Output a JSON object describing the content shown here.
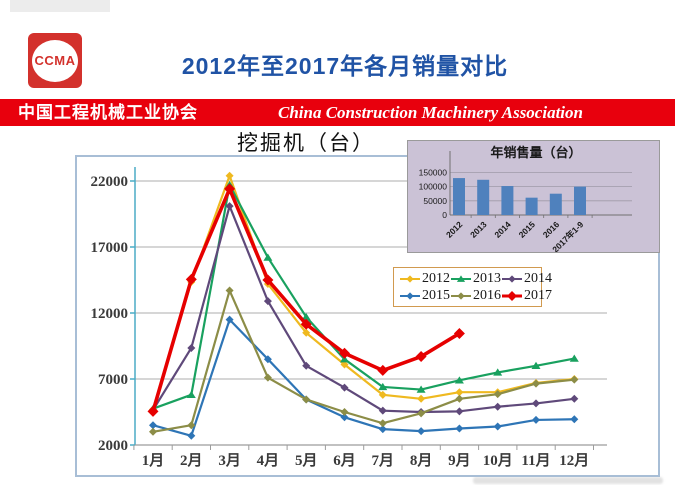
{
  "header": {
    "logo_text": "CCMA",
    "title": "2012年至2017年各月销量对比"
  },
  "banner": {
    "left": "中国工程机械工业协会",
    "right": "China Construction Machinery Association"
  },
  "colors": {
    "banner_bg": "#e8000d",
    "title_blue": "#2053a5",
    "logo_red": "#d3312c",
    "legend_border": "#d19a4f",
    "grid": "#adadad",
    "y_axis": "#4bacc6",
    "x_axis": "#9c9c9c"
  },
  "chart_data": [
    {
      "type": "line",
      "title": "挖掘机（台）",
      "x_labels": [
        "1月",
        "2月",
        "3月",
        "4月",
        "5月",
        "6月",
        "7月",
        "8月",
        "9月",
        "10月",
        "11月",
        "12月"
      ],
      "y_ticks": [
        2000,
        7000,
        12000,
        17000,
        22000
      ],
      "ylim": [
        2000,
        23500
      ],
      "grid": true,
      "legend_position": "middle-right",
      "series": [
        {
          "name": "2012",
          "color": "#efb920",
          "marker": "diamond",
          "values": [
            4700,
            14350,
            22400,
            14200,
            10500,
            8100,
            5800,
            5500,
            6000,
            6000,
            6700,
            7000
          ]
        },
        {
          "name": "2013",
          "color": "#19a15f",
          "marker": "triangle",
          "values": [
            4750,
            5800,
            21700,
            16200,
            11700,
            8500,
            6400,
            6200,
            6900,
            7500,
            8000,
            8550
          ]
        },
        {
          "name": "2014",
          "color": "#5f497a",
          "marker": "diamond",
          "values": [
            4650,
            9350,
            20100,
            12900,
            8000,
            6350,
            4600,
            4500,
            4550,
            4900,
            5150,
            5500
          ]
        },
        {
          "name": "2015",
          "color": "#2e75b6",
          "marker": "diamond",
          "values": [
            3500,
            2700,
            11500,
            8500,
            5450,
            4100,
            3200,
            3050,
            3250,
            3400,
            3900,
            3950
          ]
        },
        {
          "name": "2016",
          "color": "#8c8d47",
          "marker": "diamond",
          "values": [
            3000,
            3500,
            13700,
            7100,
            5450,
            4500,
            3650,
            4400,
            5500,
            5850,
            6650,
            6950
          ]
        },
        {
          "name": "2017",
          "color": "#e60000",
          "marker": "diamond",
          "emphasis": true,
          "values": [
            4550,
            14550,
            21400,
            14500,
            11150,
            8950,
            7650,
            8700,
            10450,
            null,
            null,
            null
          ]
        }
      ]
    },
    {
      "type": "bar",
      "title": "年销售量（台）",
      "categories": [
        "2012",
        "2013",
        "2014",
        "2015",
        "2016",
        "2017年1-9"
      ],
      "values": [
        130000,
        124000,
        102000,
        61000,
        75000,
        100000
      ],
      "y_ticks": [
        0,
        50000,
        100000,
        150000
      ],
      "ylim": [
        0,
        150000
      ],
      "bar_color": "#4f81bd",
      "background": "#cbc2d6"
    }
  ]
}
